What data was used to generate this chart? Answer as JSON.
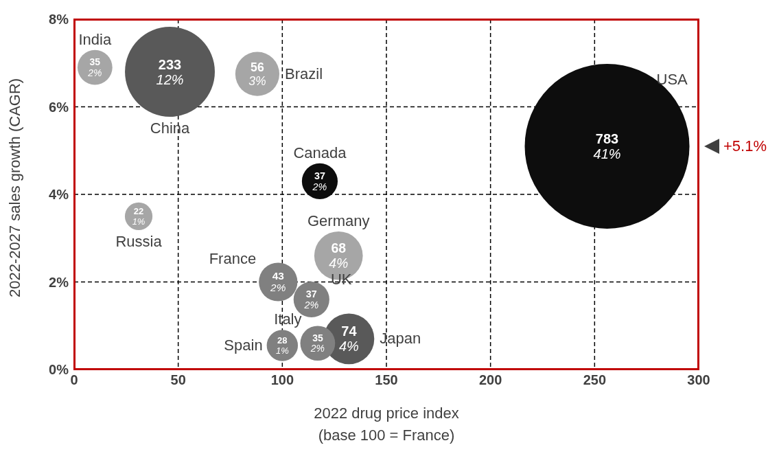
{
  "chart_data": {
    "type": "bubble",
    "xlabel": "2022 drug price index\n(base 100 = France)",
    "ylabel": "2022-2027 sales growth (CAGR)",
    "xlim": [
      0,
      300
    ],
    "xticks": [
      0,
      50,
      100,
      150,
      200,
      250,
      300
    ],
    "ylim": [
      0,
      8
    ],
    "yticks": [
      {
        "value": 0,
        "label": "0%"
      },
      {
        "value": 2,
        "label": "2%"
      },
      {
        "value": 4,
        "label": "4%"
      },
      {
        "value": 6,
        "label": "6%"
      },
      {
        "value": 8,
        "label": "8%"
      }
    ],
    "grid": true,
    "marker": "circle",
    "annotations": [
      "+5.1%",
      {
        "text": "41%",
        "x": 256,
        "y": 5.1
      },
      {
        "text": "12%",
        "x": 46,
        "y": 6.8
      },
      {
        "text": "4%",
        "x": 132,
        "y": 0.7
      },
      {
        "text": "2%",
        "x": 10,
        "y": 6.9
      },
      {
        "text": "3%",
        "x": 88,
        "y": 6.75
      },
      {
        "text": "2%",
        "x": 118,
        "y": 4.3
      },
      {
        "text": "1%",
        "x": 31,
        "y": 3.5
      },
      {
        "text": "4%",
        "x": 127,
        "y": 2.6
      },
      {
        "text": "2%",
        "x": 98,
        "y": 2.0
      },
      {
        "text": "2%",
        "x": 114,
        "y": 1.6
      },
      {
        "text": "2%",
        "x": 117,
        "y": 0.6
      },
      {
        "text": "1%",
        "x": 100,
        "y": 0.55
      }
    ],
    "series": [
      {
        "name": "USA",
        "color": "#0d0d0d",
        "x": [
          256
        ],
        "values": [
          5.1
        ],
        "sizes": [
          783
        ],
        "value_labels": [
          "783"
        ]
      },
      {
        "name": "China",
        "color": "#595959",
        "x": [
          46
        ],
        "values": [
          6.8
        ],
        "sizes": [
          233
        ],
        "value_labels": [
          "233"
        ]
      },
      {
        "name": "Japan",
        "color": "#595959",
        "x": [
          132
        ],
        "values": [
          0.7
        ],
        "sizes": [
          74
        ],
        "value_labels": [
          "74"
        ]
      },
      {
        "name": "India",
        "color": "#a6a6a6",
        "x": [
          10
        ],
        "values": [
          6.9
        ],
        "sizes": [
          35
        ],
        "value_labels": [
          "35"
        ]
      },
      {
        "name": "Brazil",
        "color": "#a6a6a6",
        "x": [
          88
        ],
        "values": [
          6.75
        ],
        "sizes": [
          56
        ],
        "value_labels": [
          "56"
        ]
      },
      {
        "name": "Canada",
        "color": "#0d0d0d",
        "x": [
          118
        ],
        "values": [
          4.3
        ],
        "sizes": [
          37
        ],
        "value_labels": [
          "37"
        ]
      },
      {
        "name": "Russia",
        "color": "#a6a6a6",
        "x": [
          31
        ],
        "values": [
          3.5
        ],
        "sizes": [
          22
        ],
        "value_labels": [
          "22"
        ]
      },
      {
        "name": "Germany",
        "color": "#a6a6a6",
        "x": [
          127
        ],
        "values": [
          2.6
        ],
        "sizes": [
          68
        ],
        "value_labels": [
          "68"
        ]
      },
      {
        "name": "France",
        "color": "#808080",
        "x": [
          98
        ],
        "values": [
          2.0
        ],
        "sizes": [
          43
        ],
        "value_labels": [
          "43"
        ]
      },
      {
        "name": "UK",
        "color": "#808080",
        "x": [
          114
        ],
        "values": [
          1.6
        ],
        "sizes": [
          37
        ],
        "value_labels": [
          "37"
        ]
      },
      {
        "name": "Italy",
        "color": "#808080",
        "x": [
          117
        ],
        "values": [
          0.6
        ],
        "sizes": [
          35
        ],
        "value_labels": [
          "35"
        ]
      },
      {
        "name": "Spain",
        "color": "#808080",
        "x": [
          100
        ],
        "values": [
          0.55
        ],
        "sizes": [
          28
        ],
        "value_labels": [
          "28"
        ]
      }
    ]
  }
}
